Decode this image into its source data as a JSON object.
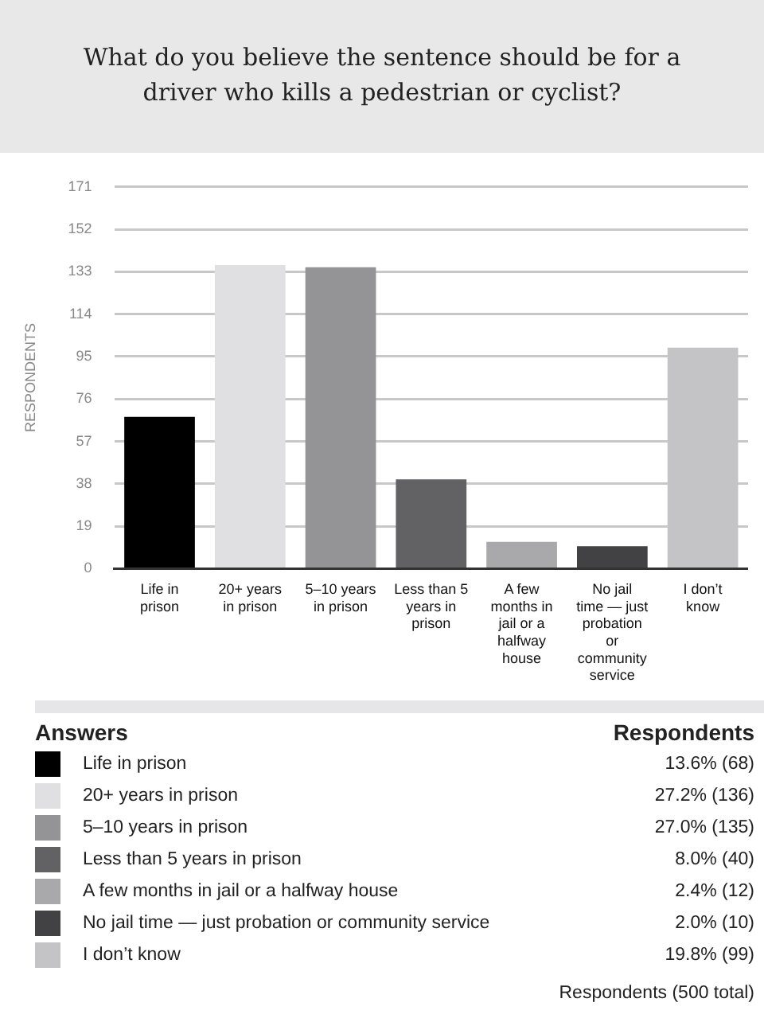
{
  "chart_data": {
    "type": "bar",
    "title": "What do you believe the sentence should be for a driver who kills a pedestrian or cyclist?",
    "ylabel": "RESPONDENTS",
    "legend_title": "Answers",
    "categories": [
      "Life in prison",
      "20+ years in prison",
      "5–10 years in prison",
      "Less than 5 years in prison",
      "A few months in jail or a halfway house",
      "No jail time — just probation or community service",
      "I don’t know"
    ],
    "values": [
      68,
      136,
      135,
      40,
      12,
      10,
      99
    ],
    "colors": [
      "#000000",
      "#e0e0e2",
      "#949497",
      "#626264",
      "#a9a9ab",
      "#424244",
      "#c4c4c6"
    ],
    "annotations": [
      "Respondents",
      "13.6% (68)",
      "27.2% (136)",
      "27.0% (135)",
      "8.0% (40)",
      "2.4% (12)",
      "2.0% (10)",
      "19.8% (99)",
      "Respondents (500 total)"
    ],
    "ylim": [
      0,
      171
    ],
    "yticks": [
      0,
      19,
      38,
      57,
      76,
      95,
      114,
      133,
      152,
      171
    ],
    "grid": "y"
  }
}
